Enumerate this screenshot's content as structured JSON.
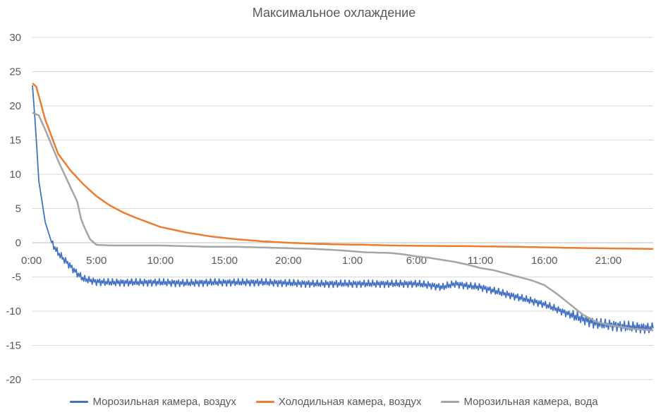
{
  "chart_data": {
    "type": "line",
    "title": "Максимальное охлаждение",
    "xlabel": "",
    "ylabel": "",
    "x_tick_labels": [
      "0:00",
      "5:00",
      "10:00",
      "15:00",
      "20:00",
      "1:00",
      "6:00",
      "11:00",
      "16:00",
      "21:00"
    ],
    "x_tick_positions_hours": [
      0,
      5,
      10,
      15,
      20,
      25,
      30,
      35,
      40,
      45
    ],
    "xlim_hours": [
      0,
      48.5
    ],
    "y_ticks": [
      30,
      25,
      20,
      15,
      10,
      5,
      0,
      -5,
      -10,
      -15,
      -20
    ],
    "ylim": [
      -20,
      30
    ],
    "grid": "horizontal",
    "legend_position": "bottom",
    "series": [
      {
        "name": "Морозильная камера, воздух",
        "color": "#4472c4",
        "noisy": true,
        "x": [
          0,
          0.2,
          0.5,
          1,
          1.5,
          2,
          2.5,
          3,
          3.5,
          4,
          4.5,
          5,
          6,
          8,
          10,
          12,
          14,
          16,
          18,
          20,
          22,
          24,
          26,
          28,
          30,
          31,
          32,
          33,
          34,
          35,
          36,
          38,
          40,
          42,
          44,
          46,
          48.5
        ],
        "y": [
          23,
          18,
          9,
          3,
          0,
          -1.5,
          -2.5,
          -3.5,
          -4.5,
          -5.3,
          -5.5,
          -5.7,
          -5.8,
          -5.8,
          -5.8,
          -5.9,
          -5.8,
          -5.8,
          -5.8,
          -5.9,
          -6.0,
          -6.0,
          -6.0,
          -6.0,
          -6.0,
          -6.2,
          -6.5,
          -6.0,
          -6.3,
          -6.5,
          -7.0,
          -8.0,
          -9.0,
          -10.5,
          -11.8,
          -12.2,
          -12.5
        ]
      },
      {
        "name": "Холодильная камера, воздух",
        "color": "#ed7d31",
        "noisy": false,
        "x": [
          0,
          0.3,
          1,
          2,
          3,
          4,
          5,
          6,
          7,
          8,
          10,
          12,
          14,
          16,
          18,
          20,
          22,
          24,
          26,
          28,
          30,
          34,
          38,
          42,
          46,
          48.5
        ],
        "y": [
          23.3,
          22.8,
          18,
          13,
          10.5,
          8.5,
          6.8,
          5.5,
          4.5,
          3.7,
          2.3,
          1.5,
          0.9,
          0.5,
          0.2,
          0,
          -0.15,
          -0.25,
          -0.3,
          -0.4,
          -0.45,
          -0.5,
          -0.6,
          -0.75,
          -0.85,
          -0.9
        ]
      },
      {
        "name": "Морозильная камера, вода",
        "color": "#a5a5a5",
        "noisy": false,
        "x": [
          0,
          0.5,
          1,
          2,
          3,
          3.5,
          3.8,
          4,
          4.5,
          5,
          6,
          8,
          10,
          12,
          14,
          16,
          18,
          20,
          22,
          24,
          26,
          28,
          29,
          30,
          31,
          32,
          33,
          34,
          35,
          36,
          37,
          38,
          39,
          40,
          41,
          42,
          43,
          44,
          45,
          46,
          47,
          48.5
        ],
        "y": [
          19,
          18.6,
          16.5,
          12,
          8,
          6,
          3.5,
          2.5,
          0.5,
          -0.3,
          -0.4,
          -0.4,
          -0.4,
          -0.5,
          -0.6,
          -0.6,
          -0.7,
          -0.8,
          -0.9,
          -1.1,
          -1.4,
          -1.5,
          -1.7,
          -2.0,
          -2.2,
          -2.5,
          -2.8,
          -3.2,
          -3.7,
          -4.0,
          -4.5,
          -5.0,
          -5.5,
          -6.2,
          -7.5,
          -9.0,
          -10.5,
          -11.5,
          -12.0,
          -12.3,
          -12.6,
          -12.8
        ]
      }
    ]
  }
}
